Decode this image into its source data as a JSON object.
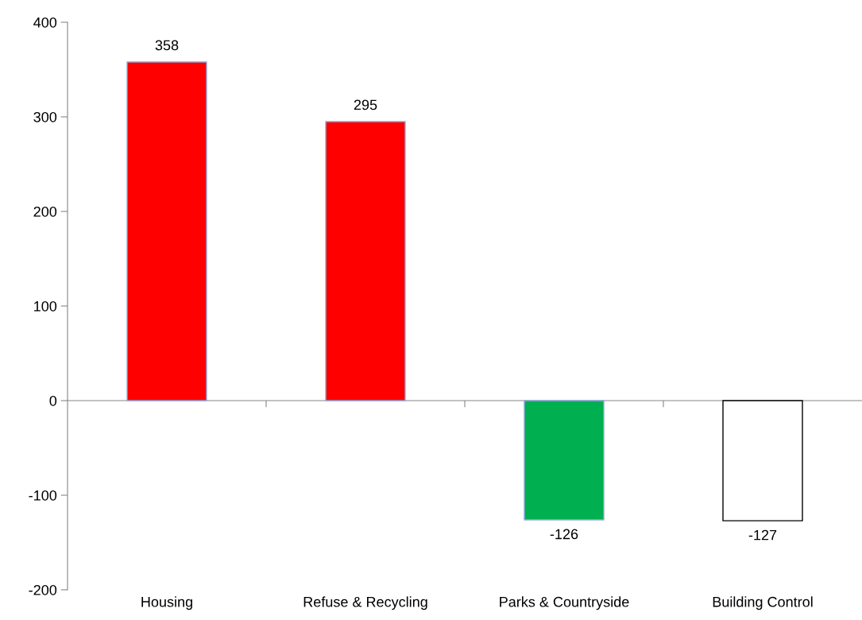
{
  "chart_data": {
    "type": "bar",
    "categories": [
      "Housing",
      "Refuse & Recycling",
      "Parks & Countryside",
      "Building Control"
    ],
    "values": [
      358,
      295,
      -126,
      -127
    ],
    "colors": [
      "#ff0000",
      "#ff0000",
      "#00b050",
      "#ffffff"
    ],
    "ylim": [
      -200,
      400
    ],
    "yticks": [
      -200,
      -100,
      0,
      100,
      200,
      300,
      400
    ],
    "data_labels": true
  }
}
